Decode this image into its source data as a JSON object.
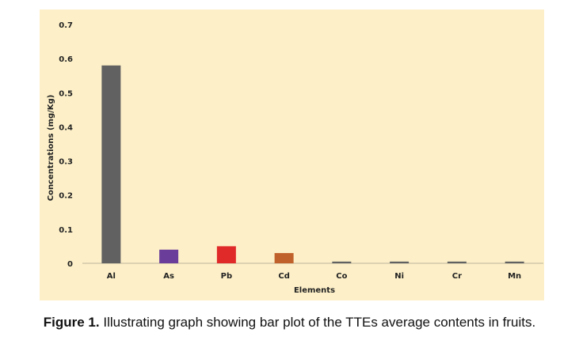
{
  "chart_data": {
    "type": "bar",
    "categories": [
      "Al",
      "As",
      "Pb",
      "Cd",
      "Co",
      "Ni",
      "Cr",
      "Mn"
    ],
    "values": [
      0.58,
      0.04,
      0.05,
      0.03,
      0.005,
      0.005,
      0.005,
      0.005
    ],
    "colors": [
      "#616161",
      "#6a3d9a",
      "#e02a2a",
      "#c0612b",
      "#616161",
      "#616161",
      "#616161",
      "#616161"
    ],
    "xlabel": "Elements",
    "ylabel": "Concentrations (mg/Kg)",
    "ylim": [
      0,
      0.7
    ],
    "yticks": [
      0,
      0.1,
      0.2,
      0.3,
      0.4,
      0.5,
      0.6,
      0.7
    ],
    "ytick_labels": [
      "0",
      "0.1",
      "0.2",
      "0.3",
      "0.4",
      "0.5",
      "0.6",
      "0.7"
    ],
    "background": "#fdf0c8",
    "grid": false
  },
  "caption": {
    "label": "Figure 1.",
    "text": " Illustrating graph showing bar plot of the TTEs average contents in fruits."
  }
}
